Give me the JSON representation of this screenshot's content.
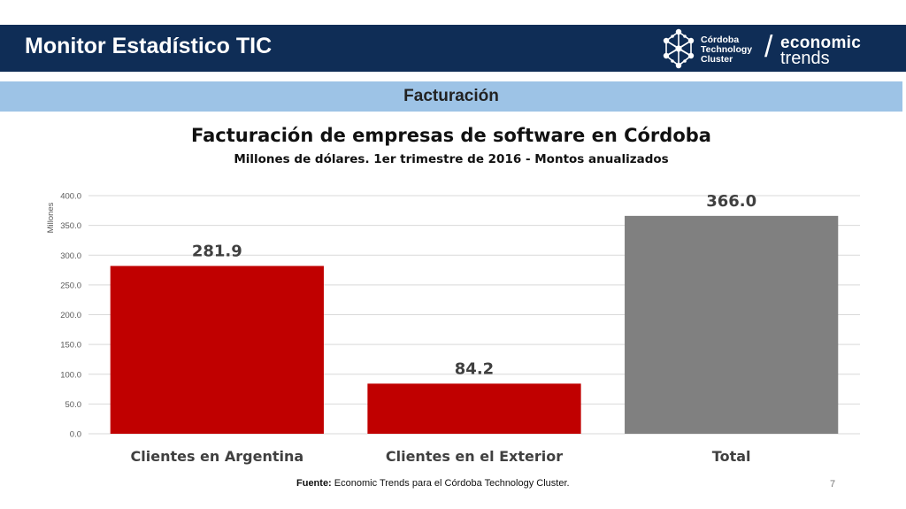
{
  "header": {
    "title": "Monitor Estadístico TIC",
    "cluster_logo_lines": [
      "Córdoba",
      "Technology",
      "Cluster"
    ],
    "brand_word1": "economic",
    "brand_word2": "trends"
  },
  "section": {
    "title": "Facturación"
  },
  "footer": {
    "source_label": "Fuente:",
    "source_text": "Economic Trends para el Córdoba Technology Cluster.",
    "page_number": "7"
  },
  "colors": {
    "header_bg": "#0f2d56",
    "section_band": "#9dc3e6",
    "bar_red": "#c00000",
    "bar_gray": "#808080"
  },
  "chart_data": {
    "type": "bar",
    "title": "Facturación de empresas de software en Córdoba",
    "subtitle": "Millones de dólares. 1er trimestre de 2016 - Montos anualizados",
    "ylabel": "Millones",
    "xlabel": "",
    "categories": [
      "Clientes en Argentina",
      "Clientes en el Exterior",
      "Total"
    ],
    "values": [
      281.9,
      84.2,
      366.0
    ],
    "value_labels": [
      "281.9",
      "84.2",
      "366.0"
    ],
    "bar_colors": [
      "#c00000",
      "#c00000",
      "#808080"
    ],
    "ylim": [
      0,
      400
    ],
    "yticks": [
      "0.0",
      "50.0",
      "100.0",
      "150.0",
      "200.0",
      "250.0",
      "300.0",
      "350.0",
      "400.0"
    ],
    "grid": true
  }
}
